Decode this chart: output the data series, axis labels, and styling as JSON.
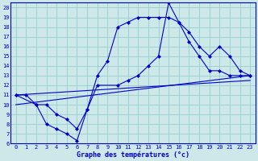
{
  "title": "Graphe des températures (°c)",
  "bg_color": "#cce8e8",
  "line_color": "#0000cc",
  "grid_color": "#99cccc",
  "xlim": [
    -0.5,
    23.5
  ],
  "ylim": [
    6,
    20.5
  ],
  "xticks": [
    0,
    1,
    2,
    3,
    4,
    5,
    6,
    7,
    8,
    9,
    10,
    11,
    12,
    13,
    14,
    15,
    16,
    17,
    18,
    19,
    20,
    21,
    22,
    23
  ],
  "yticks": [
    6,
    7,
    8,
    9,
    10,
    11,
    12,
    13,
    14,
    15,
    16,
    17,
    18,
    19,
    20
  ],
  "curve1_x": [
    0,
    1,
    2,
    3,
    4,
    5,
    6,
    7,
    8,
    9,
    10,
    11,
    12,
    13,
    14,
    15,
    16,
    17,
    18,
    19,
    20,
    21,
    22,
    23
  ],
  "curve1_y": [
    11,
    11,
    10,
    8,
    7.5,
    7,
    6.3,
    9.5,
    13,
    14.5,
    18,
    18.5,
    19,
    19,
    19,
    19,
    18.5,
    16.5,
    15,
    13.5,
    13.5,
    13,
    13,
    13
  ],
  "curve2_x": [
    0,
    2,
    3,
    4,
    5,
    6,
    7,
    8,
    10,
    11,
    12,
    13,
    14,
    15,
    16,
    17,
    18,
    19,
    20,
    21,
    22,
    23
  ],
  "curve2_y": [
    11,
    10,
    10,
    9,
    8.5,
    7.5,
    9.5,
    12,
    12,
    12.5,
    13,
    14,
    15,
    20.5,
    18.5,
    17.5,
    16,
    15,
    16,
    15,
    13.5,
    13
  ],
  "line3_x": [
    0,
    23
  ],
  "line3_y": [
    11,
    12.5
  ],
  "line4_x": [
    0,
    23
  ],
  "line4_y": [
    10,
    13
  ]
}
